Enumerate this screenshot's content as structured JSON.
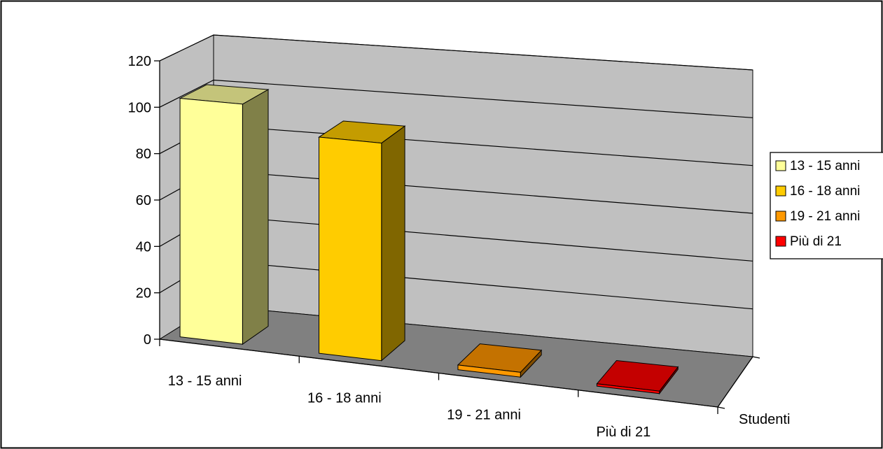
{
  "chart_data": {
    "type": "bar",
    "categories": [
      "13 - 15 anni",
      "16 - 18 anni",
      "19 - 21 anni",
      "Più di 21"
    ],
    "series": [
      {
        "name": "Studenti",
        "values": [
          103,
          92,
          2,
          1
        ]
      }
    ],
    "depth_label": "Studenti",
    "ylim": [
      0,
      120
    ],
    "yticks": [
      0,
      20,
      40,
      60,
      80,
      100,
      120
    ],
    "title": "",
    "xlabel": "",
    "ylabel": "",
    "grid": true,
    "three_d": true,
    "legend_position": "right",
    "legend": [
      {
        "label": "13 - 15 anni",
        "color": "#FFFF99"
      },
      {
        "label": "16 - 18 anni",
        "color": "#FFCC00"
      },
      {
        "label": "19 - 21 anni",
        "color": "#FF9900"
      },
      {
        "label": "Più di 21",
        "color": "#FF0000"
      }
    ],
    "colors": {
      "back_wall": "#C0C0C0",
      "side_wall": "#C0C0C0",
      "floor": "#808080",
      "bar_front": [
        "#FFFF99",
        "#FFCC00",
        "#FF9900",
        "#FF0000"
      ],
      "bar_top": [
        "#C4C47A",
        "#C49C00",
        "#C47200",
        "#C40000"
      ],
      "bar_side": [
        "#808048",
        "#806600",
        "#804C00",
        "#800000"
      ]
    }
  }
}
